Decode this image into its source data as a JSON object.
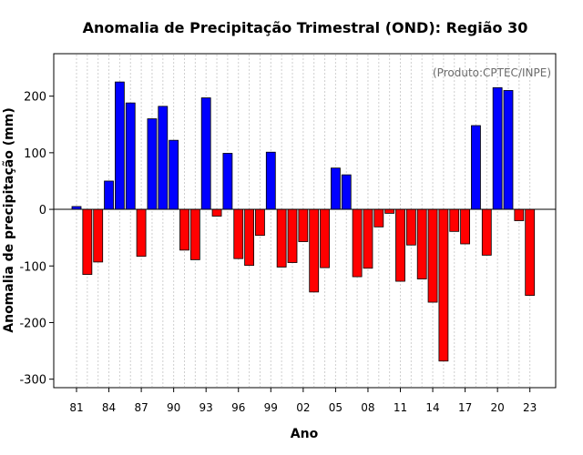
{
  "chart_data": {
    "type": "bar",
    "title": "Anomalia de Precipitação Trimestral (OND): Região 30",
    "credit": "(Produto:CPTEC/INPE)",
    "xlabel": "Ano",
    "ylabel": "Anomalia de precipitação (mm)",
    "ylim": [
      -315,
      275
    ],
    "yticks": [
      -300,
      -200,
      -100,
      0,
      100,
      200
    ],
    "grid": "vertical dotted",
    "positive_color": "#0000ff",
    "negative_color": "#ff0000",
    "categories": [
      "81",
      "82",
      "83",
      "84",
      "85",
      "86",
      "87",
      "88",
      "89",
      "90",
      "91",
      "92",
      "93",
      "94",
      "95",
      "96",
      "97",
      "98",
      "99",
      "00",
      "01",
      "02",
      "03",
      "04",
      "05",
      "06",
      "07",
      "08",
      "09",
      "10",
      "11",
      "12",
      "13",
      "14",
      "15",
      "16",
      "17",
      "18",
      "19",
      "20",
      "21",
      "22",
      "23"
    ],
    "xtick_labels": [
      "81",
      "84",
      "87",
      "90",
      "93",
      "96",
      "99",
      "02",
      "05",
      "08",
      "11",
      "14",
      "17",
      "20",
      "23"
    ],
    "values": [
      5,
      -115,
      -93,
      50,
      225,
      188,
      -83,
      160,
      182,
      122,
      -72,
      -89,
      197,
      -12,
      99,
      -87,
      -99,
      -46,
      101,
      -102,
      -94,
      -57,
      -146,
      -103,
      73,
      61,
      -119,
      -104,
      -31,
      -7,
      -127,
      -63,
      -123,
      -164,
      -268,
      -39,
      -61,
      148,
      -81,
      215,
      210,
      -20,
      -152
    ]
  }
}
